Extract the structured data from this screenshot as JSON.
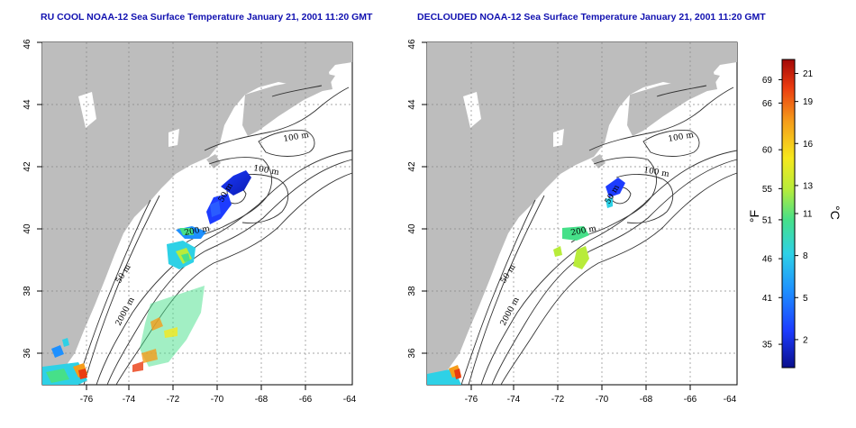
{
  "panels": [
    {
      "id": "left",
      "title": "RU COOL NOAA-12 Sea Surface Temperature January 21, 2001 11:20 GMT",
      "contour_labels": [
        "100 m",
        "100 m",
        "50 m",
        "200 m",
        "50 m",
        "2000 m"
      ]
    },
    {
      "id": "right",
      "title": "DECLOUDED NOAA-12 Sea Surface Temperature January 21, 2001 11:20 GMT",
      "contour_labels": [
        "100 m",
        "100 m",
        "50 m",
        "200 m",
        "50 m",
        "2000 m"
      ]
    }
  ],
  "axes": {
    "x_ticks": [
      -76,
      -74,
      -72,
      -70,
      -68,
      -66,
      -64
    ],
    "y_ticks": [
      36,
      38,
      40,
      42,
      44,
      46
    ],
    "x_range": [
      -77.2,
      -62.8
    ],
    "y_range": [
      35,
      46
    ]
  },
  "colorbar": {
    "fahrenheit_ticks": [
      "69",
      "66",
      "60",
      "55",
      "51",
      "46",
      "41",
      "35"
    ],
    "celsius_ticks": [
      "21",
      "19",
      "16",
      "13",
      "11",
      "8",
      "5",
      "2"
    ],
    "fahrenheit_unit": "°F",
    "celsius_unit": "°C",
    "celsius_range": [
      0,
      22
    ],
    "colors": [
      "#0a0f8c",
      "#1d3cff",
      "#1e90ff",
      "#2ed1e6",
      "#46e089",
      "#b8ec3a",
      "#f6e81d",
      "#f59c1a",
      "#ea3b10",
      "#a30808"
    ]
  },
  "land_color": "#bdbdbd"
}
